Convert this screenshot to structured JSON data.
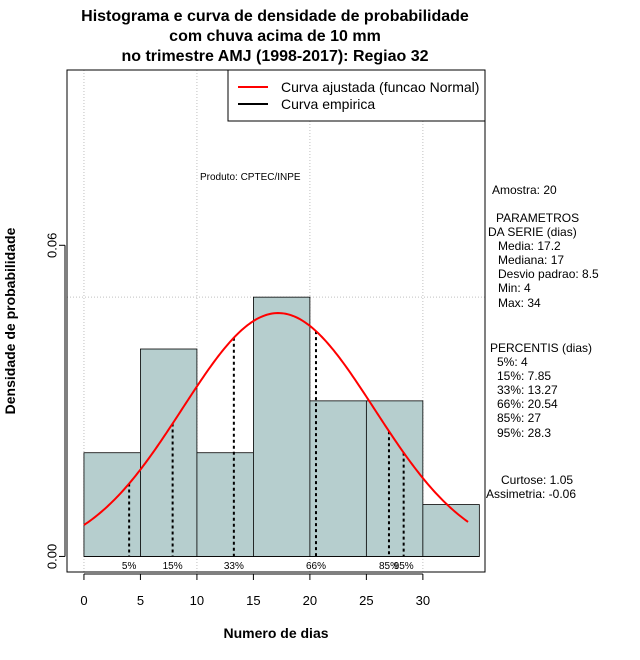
{
  "chart_data": {
    "type": "bar",
    "title_lines": [
      "Histograma e curva de densidade de probabilidade",
      "com chuva acima de 10 mm",
      "no trimestre AMJ (1998-2017): Regiao 32"
    ],
    "xlabel": "Numero de dias",
    "ylabel": "Densidade de probabilidade",
    "xlim": [
      -1.5,
      35.5
    ],
    "ylim": [
      -0.003,
      0.0938
    ],
    "x_ticks": [
      0,
      5,
      10,
      15,
      20,
      25,
      30
    ],
    "y_ticks": [
      {
        "value": 0.0,
        "label": "0.00"
      },
      {
        "value": 0.06,
        "label": "0.06"
      }
    ],
    "bins": [
      {
        "start": 0,
        "end": 5,
        "density": 0.02
      },
      {
        "start": 5,
        "end": 10,
        "density": 0.04
      },
      {
        "start": 10,
        "end": 15,
        "density": 0.02
      },
      {
        "start": 15,
        "end": 20,
        "density": 0.05
      },
      {
        "start": 20,
        "end": 25,
        "density": 0.03
      },
      {
        "start": 25,
        "end": 30,
        "density": 0.03
      },
      {
        "start": 30,
        "end": 35,
        "density": 0.01
      }
    ],
    "bar_color": "#b6cece",
    "grid": true,
    "grid_x": [
      0,
      10,
      20,
      30
    ],
    "grid_y": 0.05,
    "normal_curve": {
      "mean": 17.2,
      "sd": 8.5,
      "x_range": [
        0,
        34
      ],
      "color": "#ff0000"
    },
    "percentile_lines": [
      {
        "label": "5%",
        "x": 4
      },
      {
        "label": "15%",
        "x": 7.85
      },
      {
        "label": "33%",
        "x": 13.27
      },
      {
        "label": "66%",
        "x": 20.54
      },
      {
        "label": "85%",
        "x": 27
      },
      {
        "label": "95%",
        "x": 28.3
      }
    ],
    "legend": {
      "position": "top-right",
      "entries": [
        {
          "label": "Curva ajustada (funcao Normal)",
          "color": "#ff0000"
        },
        {
          "label": "Curva empirica",
          "color": "#000000"
        }
      ]
    },
    "annotation_produto": "Produto: CPTEC/INPE"
  },
  "side_panel": {
    "amostra": "Amostra: 20",
    "param_title_1": "PARAMETROS",
    "param_title_2": "DA SERIE (dias)",
    "media": "Media: 17.2",
    "mediana": "Mediana: 17",
    "desvio": "Desvio padrao: 8.5",
    "min": "Min: 4",
    "max": "Max: 34",
    "perc_title": "PERCENTIS (dias)",
    "p5": "5%: 4",
    "p15": "15%: 7.85",
    "p33": "33%: 13.27",
    "p66": "66%: 20.54",
    "p85": "85%: 27",
    "p95": "95%: 28.3",
    "curtose": "Curtose: 1.05",
    "assimetria": "Assimetria: -0.06"
  }
}
